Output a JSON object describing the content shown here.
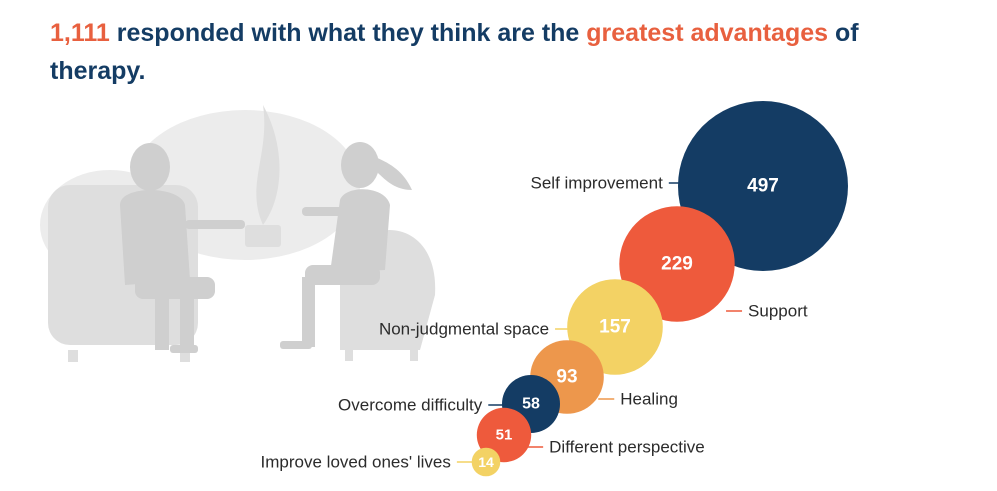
{
  "headline": {
    "count": "1,111",
    "middle": " responded with what they think are the ",
    "highlight": "greatest advantages",
    "end": " of therapy."
  },
  "colors": {
    "navy": "#143c64",
    "orange_red": "#ee5a3c",
    "yellow": "#f3d264",
    "orange": "#ed974c",
    "text": "#2b2b2b",
    "illustration": "#e6e6e6"
  },
  "illustration": {
    "icon": "therapy-session-illustration"
  },
  "chart_data": {
    "type": "bubble",
    "title": "",
    "series": [
      {
        "label": "Self improvement",
        "value": 497,
        "color": "#143c64"
      },
      {
        "label": "Support",
        "value": 229,
        "color": "#ee5a3c"
      },
      {
        "label": "Non-judgmental space",
        "value": 157,
        "color": "#f3d264"
      },
      {
        "label": "Healing",
        "value": 93,
        "color": "#ed974c"
      },
      {
        "label": "Overcome difficulty",
        "value": 58,
        "color": "#143c64"
      },
      {
        "label": "Different perspective",
        "value": 51,
        "color": "#ee5a3c"
      },
      {
        "label": "Improve loved ones' lives",
        "value": 14,
        "color": "#f3d264"
      }
    ]
  }
}
